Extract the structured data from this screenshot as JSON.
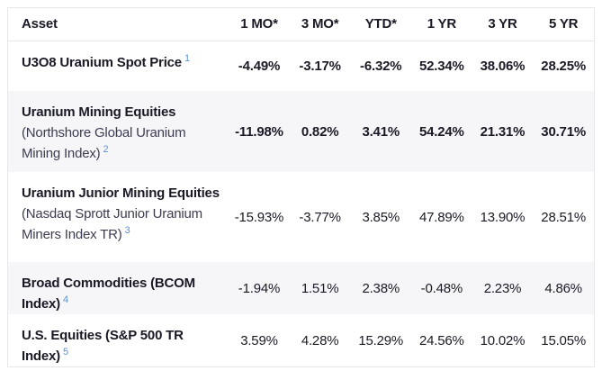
{
  "colors": {
    "text": "#1a1a26",
    "subtitle": "#3c3c50",
    "footnote_accent": "#5b93d6",
    "row_shade": "#f6f6f8",
    "border": "#e7e7ea",
    "background": "#ffffff"
  },
  "table": {
    "columns": {
      "asset": "Asset",
      "c1": "1 MO*",
      "c2": "3 MO*",
      "c3": "YTD*",
      "c4": "1 YR",
      "c5": "3 YR",
      "c6": "5 YR"
    },
    "rows": [
      {
        "title": "U3O8 Uranium Spot Price",
        "subtitle": "",
        "footnote": "1",
        "values": [
          "-4.49%",
          "-3.17%",
          "-6.32%",
          "52.34%",
          "38.06%",
          "28.25%"
        ]
      },
      {
        "title": "Uranium Mining Equities",
        "subtitle": "(Northshore Global Uranium Mining Index)",
        "footnote": "2",
        "values": [
          "-11.98%",
          "0.82%",
          "3.41%",
          "54.24%",
          "21.31%",
          "30.71%"
        ]
      },
      {
        "title": "Uranium Junior Mining Equities",
        "subtitle": "(Nasdaq Sprott Junior Uranium Miners Index TR)",
        "footnote": "3",
        "values": [
          "-15.93%",
          "-3.77%",
          "3.85%",
          "47.89%",
          "13.90%",
          "28.51%"
        ]
      },
      {
        "title": "Broad Commodities (BCOM Index)",
        "subtitle": "",
        "footnote": "4",
        "values": [
          "-1.94%",
          "1.51%",
          "2.38%",
          "-0.48%",
          "2.23%",
          "4.86%"
        ]
      },
      {
        "title": "U.S. Equities (S&P 500 TR Index)",
        "subtitle": "",
        "footnote": "5",
        "values": [
          "3.59%",
          "4.28%",
          "15.29%",
          "24.56%",
          "10.02%",
          "15.05%"
        ]
      }
    ]
  },
  "chart_data": {
    "type": "table",
    "title": "Asset performance (%)",
    "columns": [
      "Asset",
      "1 MO*",
      "3 MO*",
      "YTD*",
      "1 YR",
      "3 YR",
      "5 YR"
    ],
    "rows": [
      {
        "asset": "U3O8 Uranium Spot Price",
        "footnote": 1,
        "values_pct": [
          -4.49,
          -3.17,
          -6.32,
          52.34,
          38.06,
          28.25
        ]
      },
      {
        "asset": "Uranium Mining Equities (Northshore Global Uranium Mining Index)",
        "footnote": 2,
        "values_pct": [
          -11.98,
          0.82,
          3.41,
          54.24,
          21.31,
          30.71
        ]
      },
      {
        "asset": "Uranium Junior Mining Equities (Nasdaq Sprott Junior Uranium Miners Index TR)",
        "footnote": 3,
        "values_pct": [
          -15.93,
          -3.77,
          3.85,
          47.89,
          13.9,
          28.51
        ]
      },
      {
        "asset": "Broad Commodities (BCOM Index)",
        "footnote": 4,
        "values_pct": [
          -1.94,
          1.51,
          2.38,
          -0.48,
          2.23,
          4.86
        ]
      },
      {
        "asset": "U.S. Equities (S&P 500 TR Index)",
        "footnote": 5,
        "values_pct": [
          3.59,
          4.28,
          15.29,
          24.56,
          10.02,
          15.05
        ]
      }
    ]
  }
}
